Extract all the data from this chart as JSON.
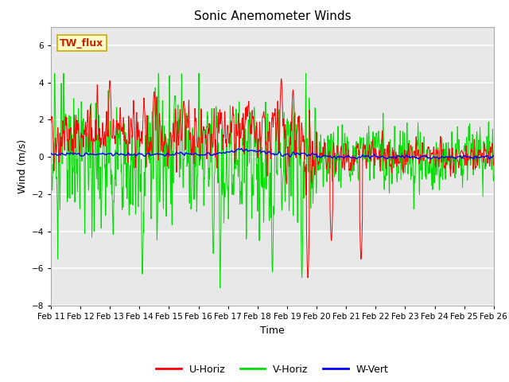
{
  "title": "Sonic Anemometer Winds",
  "xlabel": "Time",
  "ylabel": "Wind (m/s)",
  "ylim": [
    -8,
    7
  ],
  "yticks": [
    -8,
    -6,
    -4,
    -2,
    0,
    2,
    4,
    6
  ],
  "xlim": [
    0,
    15
  ],
  "bg_color": "#e8e8e8",
  "fig_color": "#ffffff",
  "grid_color": "#ffffff",
  "label_box_text": "TW_flux",
  "label_box_bg": "#ffffcc",
  "label_box_edge": "#ccaa00",
  "label_box_text_color": "#cc2200",
  "series_colors": {
    "U-Horiz": "#ff0000",
    "V-Horiz": "#00dd00",
    "W-Vert": "#0000ff"
  },
  "x_tick_labels": [
    "Feb 11",
    "Feb 12",
    "Feb 13",
    "Feb 14",
    "Feb 15",
    "Feb 16",
    "Feb 17",
    "Feb 18",
    "Feb 19",
    "Feb 20",
    "Feb 21",
    "Feb 22",
    "Feb 23",
    "Feb 24",
    "Feb 25",
    "Feb 26"
  ],
  "seed": 42,
  "n_points": 2000
}
